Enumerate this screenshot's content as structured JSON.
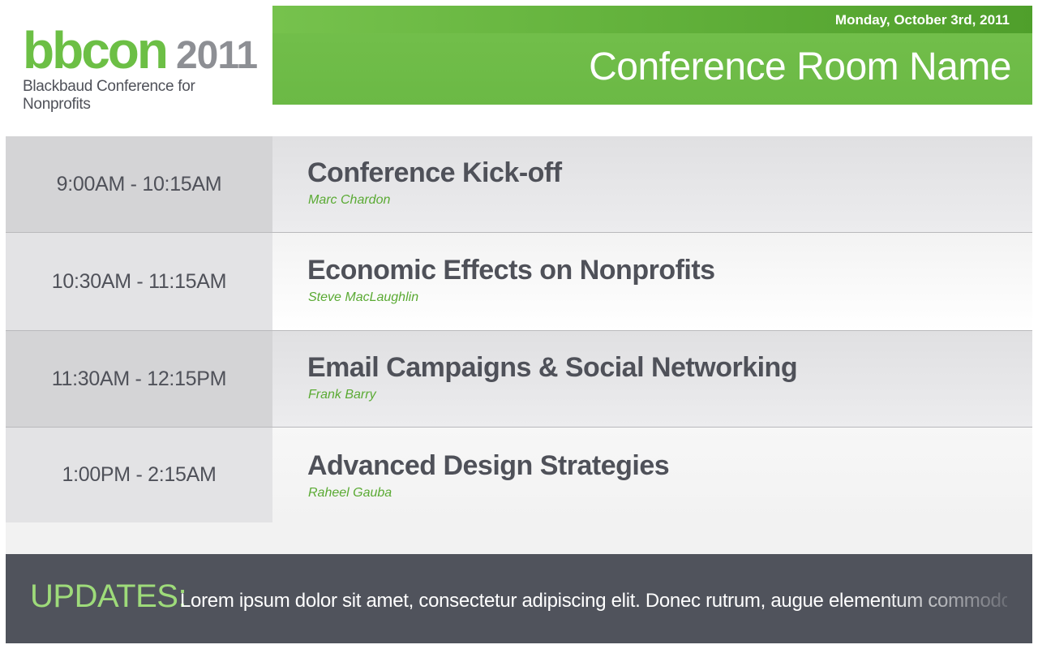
{
  "logo": {
    "brand": "bbcon",
    "year": "2011",
    "tagline": "Blackbaud Conference for Nonprofits"
  },
  "header": {
    "date": "Monday, October 3rd, 2011",
    "room_name": "Conference Room Name"
  },
  "sessions": [
    {
      "time": "9:00AM - 10:15AM",
      "title": "Conference Kick-off",
      "speaker": "Marc Chardon"
    },
    {
      "time": "10:30AM - 11:15AM",
      "title": "Economic Effects on Nonprofits",
      "speaker": "Steve MacLaughlin"
    },
    {
      "time": "11:30AM - 12:15PM",
      "title": "Email Campaigns & Social Networking",
      "speaker": "Frank Barry"
    },
    {
      "time": "1:00PM - 2:15AM",
      "title": "Advanced Design Strategies",
      "speaker": "Raheel Gauba"
    }
  ],
  "updates": {
    "label": "UPDATES:",
    "text": "Lorem ipsum dolor sit amet, consectetur adipiscing elit. Donec rutrum, augue elementum commodo..."
  },
  "colors": {
    "accent_green": "#6cbf45",
    "dark_gray": "#50535c",
    "updates_label": "#9edb7a"
  }
}
